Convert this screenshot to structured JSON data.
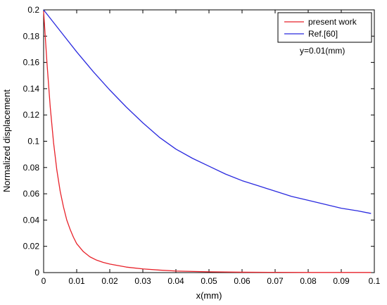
{
  "chart_data": {
    "type": "line",
    "xlabel": "x(mm)",
    "ylabel": "Normalized displacement",
    "xlim": [
      0,
      0.1
    ],
    "ylim": [
      0,
      0.2
    ],
    "xticks": [
      "0",
      "0.01",
      "0.02",
      "0.03",
      "0.04",
      "0.05",
      "0.06",
      "0.07",
      "0.08",
      "0.09",
      "0.1"
    ],
    "yticks": [
      "0",
      "0.02",
      "0.04",
      "0.06",
      "0.08",
      "0.1",
      "0.12",
      "0.14",
      "0.16",
      "0.18",
      "0.2"
    ],
    "grid": false,
    "legend_position": "top-right",
    "annotation": "y=0.01(mm)",
    "series": [
      {
        "name": "present work",
        "color": "#e8222a",
        "x": [
          0,
          0.001,
          0.002,
          0.003,
          0.004,
          0.005,
          0.006,
          0.007,
          0.008,
          0.009,
          0.01,
          0.012,
          0.014,
          0.016,
          0.018,
          0.02,
          0.025,
          0.03,
          0.035,
          0.04,
          0.05,
          0.06,
          0.07,
          0.08,
          0.09,
          0.099
        ],
        "y": [
          0.199,
          0.16,
          0.126,
          0.099,
          0.078,
          0.062,
          0.05,
          0.04,
          0.033,
          0.027,
          0.022,
          0.016,
          0.012,
          0.0095,
          0.0078,
          0.0065,
          0.0042,
          0.0028,
          0.0019,
          0.0012,
          0.0006,
          0.0003,
          0.0002,
          0.0001,
          0.0001,
          0.0001
        ]
      },
      {
        "name": "Ref.[60]",
        "color": "#2a2adf",
        "x": [
          0,
          0.005,
          0.01,
          0.015,
          0.02,
          0.025,
          0.03,
          0.035,
          0.04,
          0.045,
          0.05,
          0.055,
          0.06,
          0.065,
          0.07,
          0.075,
          0.08,
          0.085,
          0.09,
          0.095,
          0.099
        ],
        "y": [
          0.2,
          0.184,
          0.168,
          0.153,
          0.139,
          0.126,
          0.114,
          0.103,
          0.094,
          0.087,
          0.081,
          0.075,
          0.07,
          0.066,
          0.062,
          0.058,
          0.055,
          0.052,
          0.049,
          0.047,
          0.045
        ]
      }
    ]
  }
}
